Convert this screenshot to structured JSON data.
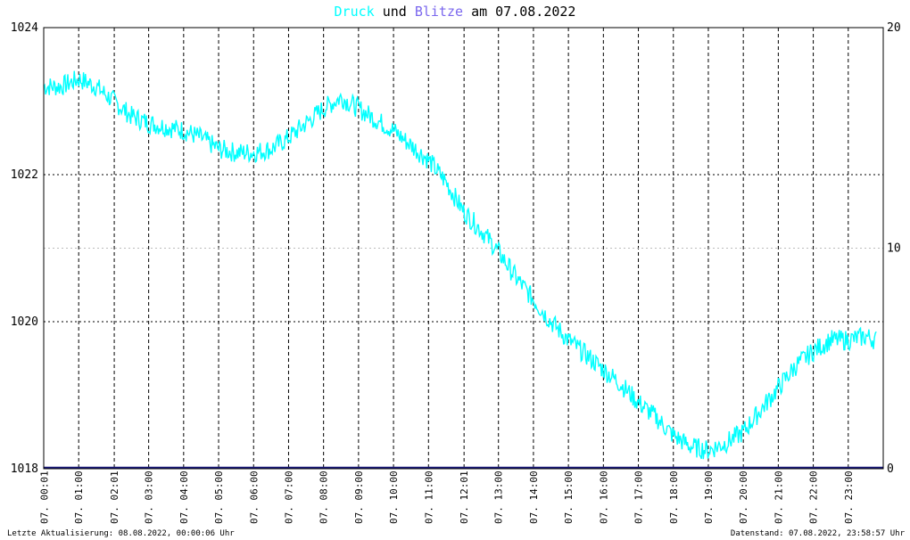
{
  "title": {
    "series1": "Druck",
    "connector": "und",
    "series2": "Blitze",
    "suffix": "am 07.08.2022"
  },
  "footer": {
    "left": "Letzte Aktualisierung: 08.08.2022, 00:00:06 Uhr",
    "right": "Datenstand: 07.08.2022, 23:58:57 Uhr"
  },
  "colors": {
    "druck": "#00ffff",
    "blitze": "#1a1a7a",
    "grid": "#000000",
    "minor_grid": "#bbbbbb"
  },
  "chart_data": {
    "type": "line",
    "title": "Druck und Blitze am 07.08.2022",
    "x_tick_labels": [
      "07. 00:01",
      "07. 01:00",
      "07. 02:01",
      "07. 03:00",
      "07. 04:00",
      "07. 05:00",
      "07. 06:00",
      "07. 07:00",
      "07. 08:00",
      "07. 09:00",
      "07. 10:00",
      "07. 11:00",
      "07. 12:01",
      "07. 13:00",
      "07. 14:00",
      "07. 15:00",
      "07. 16:00",
      "07. 17:00",
      "07. 18:00",
      "07. 19:00",
      "07. 20:00",
      "07. 21:00",
      "07. 22:00",
      "07. 23:00"
    ],
    "x_tick_hours": [
      0.0167,
      1,
      2.0167,
      3,
      4,
      5,
      6,
      7,
      8,
      9,
      10,
      11,
      12.0167,
      13,
      14,
      15,
      16,
      17,
      18,
      19,
      20,
      21,
      22,
      23
    ],
    "x_range": [
      0,
      24
    ],
    "y_left_ticks": [
      1018,
      1020,
      1022,
      1024
    ],
    "y_left_range": [
      1018,
      1024
    ],
    "y_right_ticks": [
      0,
      10,
      20
    ],
    "y_right_range": [
      0,
      20
    ],
    "grid": true,
    "series": [
      {
        "name": "Druck",
        "axis": "left",
        "x_hours": [
          0,
          0.5,
          1,
          1.5,
          2,
          2.5,
          3,
          3.5,
          4,
          4.5,
          5,
          5.5,
          6,
          6.5,
          7,
          7.5,
          8,
          8.5,
          9,
          9.5,
          10,
          10.5,
          11,
          11.5,
          12,
          12.5,
          13,
          13.5,
          14,
          14.5,
          15,
          15.5,
          16,
          16.5,
          17,
          17.5,
          18,
          18.5,
          19,
          19.5,
          20,
          20.5,
          21,
          21.5,
          22,
          22.5,
          23,
          23.5,
          23.8
        ],
        "values": [
          1023.2,
          1023.2,
          1023.3,
          1023.2,
          1023.0,
          1022.8,
          1022.7,
          1022.65,
          1022.6,
          1022.5,
          1022.35,
          1022.3,
          1022.3,
          1022.35,
          1022.5,
          1022.7,
          1022.9,
          1023.05,
          1022.9,
          1022.75,
          1022.6,
          1022.4,
          1022.2,
          1021.9,
          1021.5,
          1021.25,
          1020.95,
          1020.6,
          1020.3,
          1020.0,
          1019.75,
          1019.55,
          1019.35,
          1019.15,
          1018.9,
          1018.7,
          1018.45,
          1018.3,
          1018.25,
          1018.35,
          1018.5,
          1018.8,
          1019.1,
          1019.4,
          1019.6,
          1019.75,
          1019.75,
          1019.8,
          1019.75
        ]
      },
      {
        "name": "Blitze",
        "axis": "right",
        "x_hours": [
          0,
          24
        ],
        "values": [
          0,
          0
        ]
      }
    ]
  }
}
